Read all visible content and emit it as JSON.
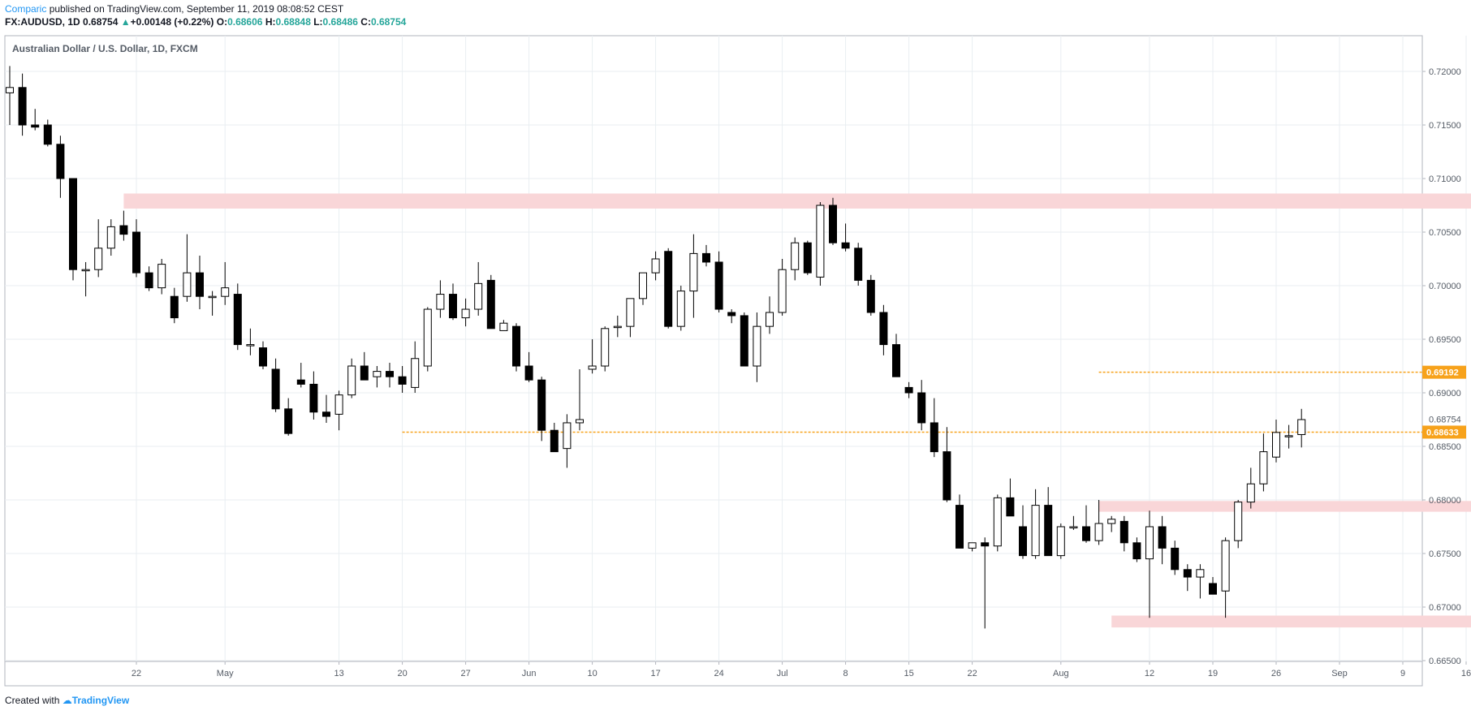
{
  "header": {
    "author": "Comparic",
    "published": "published on TradingView.com, September 11, 2019 08:08:52 CEST",
    "symbol": "FX:AUDUSD, 1D",
    "last": "0.68754",
    "change": "+0.00148 (+0.22%)",
    "o_label": "O:",
    "o_value": "0.68606",
    "h_label": "H:",
    "h_value": "0.68848",
    "l_label": "L:",
    "l_value": "0.68486",
    "c_label": "C:",
    "c_value": "0.68754"
  },
  "footer": {
    "created_with": "Created with",
    "brand": "TradingView"
  },
  "colors": {
    "support_zone": "#f9d6d8",
    "level": "#f7a21b",
    "up_fill": "#ffffff",
    "down_fill": "#000000",
    "grid": "#e9eef2"
  },
  "chart_data": {
    "type": "candlestick",
    "title": "Australian Dollar / U.S. Dollar, 1D, FXCM",
    "ylim": [
      0.665,
      0.7225
    ],
    "y_ticks": [
      "0.72000",
      "0.71500",
      "0.71000",
      "0.70500",
      "0.70000",
      "0.69500",
      "0.69000",
      "0.68500",
      "0.68000",
      "0.67500",
      "0.67000",
      "0.66500"
    ],
    "y_tick_values": [
      0.72,
      0.715,
      0.71,
      0.705,
      0.7,
      0.695,
      0.69,
      0.685,
      0.68,
      0.675,
      0.67,
      0.665
    ],
    "x_ticks": [
      "22",
      "May",
      "13",
      "20",
      "27",
      "Jun",
      "10",
      "17",
      "24",
      "Jul",
      "8",
      "15",
      "22",
      "Aug",
      "12",
      "19",
      "26",
      "Sep",
      "9",
      "16"
    ],
    "x_tick_index": [
      10,
      17,
      26,
      31,
      36,
      41,
      46,
      51,
      56,
      61,
      66,
      71,
      76,
      83,
      90,
      95,
      100,
      105,
      110,
      115
    ],
    "candles": [
      [
        0.718,
        0.7205,
        0.715,
        0.7185
      ],
      [
        0.7185,
        0.7198,
        0.714,
        0.715
      ],
      [
        0.715,
        0.7165,
        0.7145,
        0.7148
      ],
      [
        0.715,
        0.7155,
        0.713,
        0.7132
      ],
      [
        0.7132,
        0.714,
        0.7082,
        0.71
      ],
      [
        0.71,
        0.71,
        0.7005,
        0.7015
      ],
      [
        0.7015,
        0.7022,
        0.699,
        0.7015
      ],
      [
        0.7015,
        0.7062,
        0.7008,
        0.7035
      ],
      [
        0.7035,
        0.7062,
        0.7028,
        0.7055
      ],
      [
        0.7056,
        0.707,
        0.7042,
        0.7048
      ],
      [
        0.705,
        0.7062,
        0.7008,
        0.7012
      ],
      [
        0.7012,
        0.7018,
        0.6995,
        0.6998
      ],
      [
        0.6998,
        0.7025,
        0.6992,
        0.702
      ],
      [
        0.699,
        0.6998,
        0.6965,
        0.697
      ],
      [
        0.699,
        0.7048,
        0.6985,
        0.7012
      ],
      [
        0.7012,
        0.7028,
        0.6978,
        0.699
      ],
      [
        0.699,
        0.6995,
        0.6972,
        0.699
      ],
      [
        0.699,
        0.7022,
        0.6982,
        0.6998
      ],
      [
        0.6992,
        0.7002,
        0.694,
        0.6945
      ],
      [
        0.6945,
        0.696,
        0.6935,
        0.6945
      ],
      [
        0.6942,
        0.6948,
        0.6922,
        0.6925
      ],
      [
        0.6922,
        0.6932,
        0.6882,
        0.6885
      ],
      [
        0.6885,
        0.6895,
        0.686,
        0.6862
      ],
      [
        0.6912,
        0.6928,
        0.6905,
        0.6908
      ],
      [
        0.6908,
        0.692,
        0.6875,
        0.6882
      ],
      [
        0.6882,
        0.6898,
        0.6872,
        0.6878
      ],
      [
        0.688,
        0.6902,
        0.6865,
        0.6898
      ],
      [
        0.6898,
        0.6932,
        0.6895,
        0.6925
      ],
      [
        0.6925,
        0.6938,
        0.6912,
        0.6912
      ],
      [
        0.6915,
        0.6925,
        0.6905,
        0.692
      ],
      [
        0.692,
        0.6928,
        0.6905,
        0.6915
      ],
      [
        0.6915,
        0.6925,
        0.69,
        0.6908
      ],
      [
        0.6905,
        0.6948,
        0.69,
        0.6932
      ],
      [
        0.6925,
        0.698,
        0.692,
        0.6978
      ],
      [
        0.6978,
        0.7005,
        0.697,
        0.6992
      ],
      [
        0.6992,
        0.7002,
        0.6968,
        0.697
      ],
      [
        0.697,
        0.6988,
        0.6962,
        0.6978
      ],
      [
        0.6978,
        0.7022,
        0.6972,
        0.7002
      ],
      [
        0.7005,
        0.701,
        0.6962,
        0.696
      ],
      [
        0.6958,
        0.6968,
        0.6958,
        0.6965
      ],
      [
        0.6962,
        0.6965,
        0.692,
        0.6925
      ],
      [
        0.6925,
        0.6938,
        0.691,
        0.6912
      ],
      [
        0.6912,
        0.6915,
        0.6855,
        0.6865
      ],
      [
        0.6865,
        0.6872,
        0.6845,
        0.6845
      ],
      [
        0.6848,
        0.688,
        0.683,
        0.6872
      ],
      [
        0.6872,
        0.6922,
        0.6865,
        0.6875
      ],
      [
        0.6922,
        0.695,
        0.6918,
        0.6925
      ],
      [
        0.6925,
        0.6962,
        0.692,
        0.696
      ],
      [
        0.6962,
        0.6972,
        0.6952,
        0.6962
      ],
      [
        0.6962,
        0.6988,
        0.6952,
        0.6988
      ],
      [
        0.6988,
        0.7012,
        0.6982,
        0.7012
      ],
      [
        0.7012,
        0.7032,
        0.7005,
        0.7025
      ],
      [
        0.7032,
        0.7035,
        0.696,
        0.6962
      ],
      [
        0.6962,
        0.7,
        0.6958,
        0.6995
      ],
      [
        0.6995,
        0.7048,
        0.697,
        0.703
      ],
      [
        0.703,
        0.7038,
        0.7018,
        0.7022
      ],
      [
        0.7022,
        0.7032,
        0.6975,
        0.6978
      ],
      [
        0.6975,
        0.6978,
        0.6965,
        0.6972
      ],
      [
        0.6972,
        0.6975,
        0.6925,
        0.6925
      ],
      [
        0.6925,
        0.6975,
        0.691,
        0.6962
      ],
      [
        0.6962,
        0.699,
        0.6955,
        0.6975
      ],
      [
        0.6975,
        0.7025,
        0.6972,
        0.7015
      ],
      [
        0.7015,
        0.7045,
        0.7005,
        0.704
      ],
      [
        0.704,
        0.7042,
        0.701,
        0.7012
      ],
      [
        0.7008,
        0.7078,
        0.7,
        0.7075
      ],
      [
        0.7075,
        0.7082,
        0.7038,
        0.704
      ],
      [
        0.704,
        0.7058,
        0.7032,
        0.7035
      ],
      [
        0.7035,
        0.704,
        0.7,
        0.7005
      ],
      [
        0.7005,
        0.701,
        0.6972,
        0.6975
      ],
      [
        0.6975,
        0.6982,
        0.6935,
        0.6945
      ],
      [
        0.6945,
        0.6955,
        0.6915,
        0.6915
      ],
      [
        0.6905,
        0.691,
        0.6895,
        0.69
      ],
      [
        0.69,
        0.6912,
        0.6865,
        0.6872
      ],
      [
        0.6872,
        0.6895,
        0.684,
        0.6845
      ],
      [
        0.6845,
        0.6868,
        0.6798,
        0.68
      ],
      [
        0.6795,
        0.6805,
        0.6755,
        0.6755
      ],
      [
        0.6755,
        0.676,
        0.6752,
        0.676
      ],
      [
        0.676,
        0.6765,
        0.668,
        0.6757
      ],
      [
        0.6757,
        0.6805,
        0.6752,
        0.6802
      ],
      [
        0.6802,
        0.682,
        0.6785,
        0.6785
      ],
      [
        0.6775,
        0.6795,
        0.6745,
        0.6748
      ],
      [
        0.6748,
        0.681,
        0.6745,
        0.6795
      ],
      [
        0.6795,
        0.6812,
        0.6748,
        0.6748
      ],
      [
        0.6748,
        0.6778,
        0.6745,
        0.6775
      ],
      [
        0.6775,
        0.6785,
        0.6772,
        0.6775
      ],
      [
        0.6775,
        0.6795,
        0.676,
        0.6762
      ],
      [
        0.6762,
        0.68,
        0.6758,
        0.6778
      ],
      [
        0.6778,
        0.6785,
        0.677,
        0.6782
      ],
      [
        0.678,
        0.6785,
        0.6752,
        0.676
      ],
      [
        0.676,
        0.6765,
        0.6742,
        0.6745
      ],
      [
        0.6745,
        0.679,
        0.669,
        0.6775
      ],
      [
        0.6775,
        0.6785,
        0.674,
        0.6755
      ],
      [
        0.6755,
        0.6762,
        0.673,
        0.6735
      ],
      [
        0.6735,
        0.674,
        0.6715,
        0.6728
      ],
      [
        0.6728,
        0.674,
        0.6708,
        0.6735
      ],
      [
        0.6722,
        0.6728,
        0.6712,
        0.6712
      ],
      [
        0.6715,
        0.6765,
        0.669,
        0.6762
      ],
      [
        0.6762,
        0.68,
        0.6755,
        0.6798
      ],
      [
        0.6798,
        0.683,
        0.6792,
        0.6815
      ],
      [
        0.6815,
        0.6862,
        0.6808,
        0.6845
      ],
      [
        0.684,
        0.6875,
        0.6835,
        0.6863
      ],
      [
        0.686,
        0.687,
        0.6848,
        0.686
      ],
      [
        0.6861,
        0.6885,
        0.6849,
        0.6875
      ]
    ],
    "horizontal_levels": [
      {
        "value": 0.69192,
        "label": "0.69192",
        "from": 86
      },
      {
        "value": 0.68633,
        "label": "0.68633",
        "from": 31
      }
    ],
    "last_price": "0.68754",
    "zones": [
      {
        "from": 9,
        "to": 116,
        "low": 0.7075,
        "high": 0.7083
      },
      {
        "from": 86,
        "to": 121,
        "low": 0.6792,
        "high": 0.6796
      },
      {
        "from": 87,
        "to": 122,
        "low": 0.6684,
        "high": 0.6689
      }
    ]
  }
}
